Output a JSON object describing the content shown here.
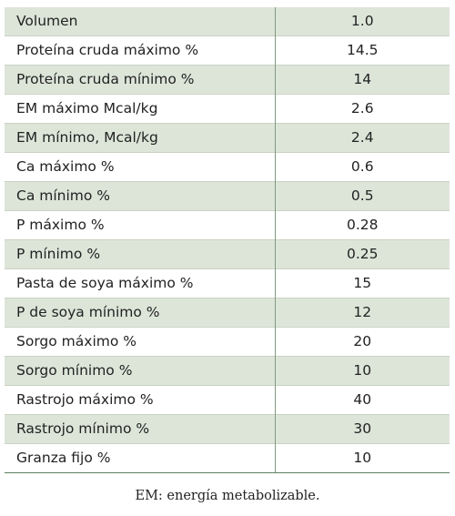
{
  "table": {
    "rows": [
      {
        "label": "Volumen",
        "value": "1.0"
      },
      {
        "label": "Proteína cruda máximo %",
        "value": "14.5"
      },
      {
        "label": "Proteína cruda mínimo %",
        "value": "14"
      },
      {
        "label": "EM máximo Mcal/kg",
        "value": "2.6"
      },
      {
        "label": "EM mínimo, Mcal/kg",
        "value": "2.4"
      },
      {
        "label": "Ca máximo %",
        "value": "0.6"
      },
      {
        "label": "Ca mínimo %",
        "value": "0.5"
      },
      {
        "label": "P máximo %",
        "value": "0.28"
      },
      {
        "label": "P mínimo %",
        "value": "0.25"
      },
      {
        "label": "Pasta de soya máximo %",
        "value": "15"
      },
      {
        "label": "P de soya mínimo %",
        "value": "12"
      },
      {
        "label": "Sorgo máximo %",
        "value": "20"
      },
      {
        "label": "Sorgo mínimo %",
        "value": "10"
      },
      {
        "label": "Rastrojo máximo %",
        "value": "40"
      },
      {
        "label": "Rastrojo mínimo %",
        "value": "30"
      },
      {
        "label": "Granza fijo %",
        "value": "10"
      }
    ]
  },
  "caption": "EM: energía metabolizable.",
  "colors": {
    "row_shade": "#dde5d9",
    "row_plain": "#ffffff",
    "divider": "#7f9a80"
  }
}
